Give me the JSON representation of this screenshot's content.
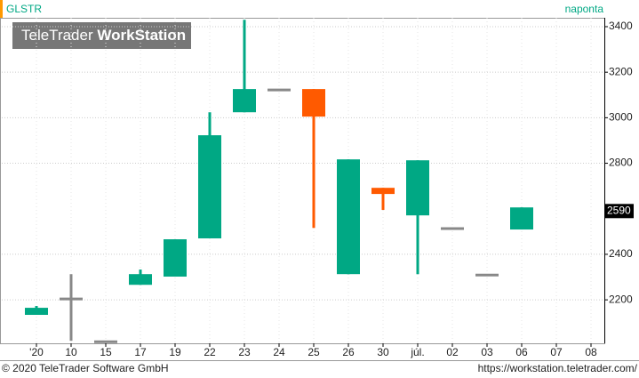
{
  "chart_data": {
    "type": "candlestick",
    "title": "GLSTR",
    "subtitle": "naponta",
    "logo": [
      "TeleTrader",
      "WorkStation"
    ],
    "copyright": "© 2020 TeleTrader Software GmbH",
    "url": "https://workstation.teletrader.com/",
    "categories": [
      "'20",
      "10",
      "15",
      "17",
      "19",
      "22",
      "23",
      "24",
      "25",
      "26",
      "30",
      "júl.",
      "02",
      "03",
      "06",
      "07",
      "08"
    ],
    "open": [
      2134,
      2204,
      2016,
      2266,
      2302,
      2470,
      3024,
      3122,
      3126,
      2313,
      2692,
      2571,
      2513,
      2309,
      2509,
      null,
      null
    ],
    "high": [
      2173,
      2313,
      2016,
      2333,
      2466,
      3024,
      3430,
      3122,
      3126,
      2817,
      2692,
      2813,
      2513,
      2309,
      2606,
      null,
      null
    ],
    "low": [
      2134,
      2020,
      2016,
      2266,
      2302,
      2470,
      3024,
      3122,
      2516,
      2313,
      2595,
      2313,
      2513,
      2309,
      2509,
      null,
      null
    ],
    "close": [
      2165,
      2204,
      2016,
      2313,
      2466,
      2923,
      3126,
      3122,
      3005,
      2817,
      2665,
      2813,
      2513,
      2309,
      2606,
      null,
      null
    ],
    "up_color": "#00a884",
    "down_color": "#ff5a00",
    "flat_color": "#888888",
    "last_price": 2590,
    "ylim": [
      2009,
      3439
    ],
    "yticks": [
      2200,
      2400,
      2800,
      3000,
      3200,
      3400
    ],
    "grid": true
  }
}
